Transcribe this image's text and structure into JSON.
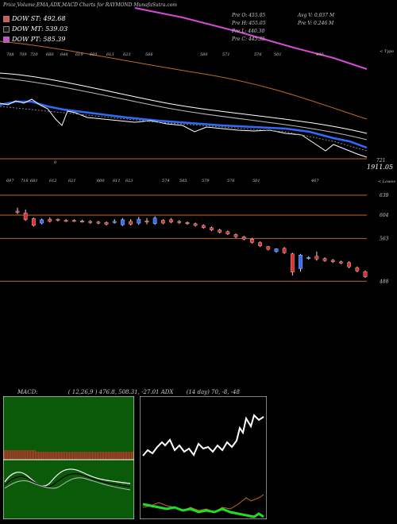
{
  "header": {
    "title": "Price,Volume,EMA,ADX,MACD Charts for RAYMOND MunafaSutra.com"
  },
  "legend": [
    {
      "label": "DOW ST: 492.68",
      "color": "#e05050"
    },
    {
      "label": "DOW MT: 539.03",
      "color": "#1a1a1a"
    },
    {
      "label": "DOW PT: 585.39",
      "color": "#d44ad4"
    }
  ],
  "stats": {
    "left": [
      "Pre O: 455.05",
      "Pre H: 455.05",
      "Pre L: 440.30",
      "Pre C: 445.35"
    ],
    "right": [
      "Avg V: 0.037 M",
      "Pre V: 0.246 M"
    ]
  },
  "top_chart": {
    "right_label": "< Typo",
    "bottom_value": "1911.05",
    "bottom_small": "721",
    "zero_mark": "0",
    "tick_labels": [
      "708",
      "709",
      "720",
      "680",
      "648",
      "619",
      "605",
      "613",
      "623",
      "588",
      "580",
      "571",
      "576",
      "501",
      "490"
    ],
    "colors": {
      "price": "#ffffff",
      "ema_short": "#2f6bff",
      "ema_long": "#ffffff",
      "ema_longest": "#c06a20",
      "dow_pt": "#d44ad4"
    }
  },
  "chart_data": {
    "type": "candlestick",
    "title": "Price,Volume,EMA,ADX,MACD Charts for RAYMOND MunafaSutra.com",
    "price_levels": [
      639,
      604,
      563,
      488
    ],
    "top_labels": [
      "697",
      "718",
      "681",
      "612",
      "621",
      "600",
      "611",
      "623",
      "574",
      "585",
      "579",
      "576",
      "501",
      "467"
    ],
    "right_label": "< Lowes",
    "candles": [
      {
        "o": 611,
        "c": 610,
        "h": 617,
        "l": 606,
        "up": false
      },
      {
        "o": 608,
        "c": 596,
        "h": 614,
        "l": 594,
        "up": false
      },
      {
        "o": 598,
        "c": 586,
        "h": 600,
        "l": 584,
        "up": false
      },
      {
        "o": 590,
        "c": 596,
        "h": 598,
        "l": 588,
        "up": true
      },
      {
        "o": 597,
        "c": 593,
        "h": 600,
        "l": 591,
        "up": false
      },
      {
        "o": 597,
        "c": 595,
        "h": 598,
        "l": 593,
        "up": false
      },
      {
        "o": 595,
        "c": 594,
        "h": 597,
        "l": 592,
        "up": false
      },
      {
        "o": 595,
        "c": 594,
        "h": 597,
        "l": 592,
        "up": false
      },
      {
        "o": 594,
        "c": 593,
        "h": 596,
        "l": 591,
        "up": false
      },
      {
        "o": 593,
        "c": 591,
        "h": 595,
        "l": 589,
        "up": false
      },
      {
        "o": 592,
        "c": 590,
        "h": 594,
        "l": 588,
        "up": false
      },
      {
        "o": 591,
        "c": 588,
        "h": 593,
        "l": 586,
        "up": false
      },
      {
        "o": 591,
        "c": 593,
        "h": 597,
        "l": 589,
        "up": true
      },
      {
        "o": 587,
        "c": 596,
        "h": 599,
        "l": 585,
        "up": true
      },
      {
        "o": 593,
        "c": 588,
        "h": 597,
        "l": 586,
        "up": false
      },
      {
        "o": 590,
        "c": 597,
        "h": 601,
        "l": 587,
        "up": true
      },
      {
        "o": 594,
        "c": 593,
        "h": 599,
        "l": 588,
        "up": false
      },
      {
        "o": 589,
        "c": 599,
        "h": 602,
        "l": 587,
        "up": true
      },
      {
        "o": 595,
        "c": 590,
        "h": 597,
        "l": 588,
        "up": false
      },
      {
        "o": 596,
        "c": 592,
        "h": 599,
        "l": 590,
        "up": false
      },
      {
        "o": 593,
        "c": 591,
        "h": 595,
        "l": 589,
        "up": false
      },
      {
        "o": 591,
        "c": 589,
        "h": 593,
        "l": 587,
        "up": false
      },
      {
        "o": 589,
        "c": 586,
        "h": 591,
        "l": 584,
        "up": false
      },
      {
        "o": 586,
        "c": 582,
        "h": 588,
        "l": 580,
        "up": false
      },
      {
        "o": 582,
        "c": 578,
        "h": 584,
        "l": 576,
        "up": false
      },
      {
        "o": 578,
        "c": 574,
        "h": 580,
        "l": 572,
        "up": false
      },
      {
        "o": 575,
        "c": 571,
        "h": 577,
        "l": 569,
        "up": false
      },
      {
        "o": 570,
        "c": 566,
        "h": 572,
        "l": 564,
        "up": false
      },
      {
        "o": 566,
        "c": 562,
        "h": 568,
        "l": 560,
        "up": false
      },
      {
        "o": 562,
        "c": 556,
        "h": 564,
        "l": 554,
        "up": false
      },
      {
        "o": 556,
        "c": 550,
        "h": 558,
        "l": 548,
        "up": false
      },
      {
        "o": 549,
        "c": 544,
        "h": 550,
        "l": 542,
        "up": false
      },
      {
        "o": 540,
        "c": 545,
        "h": 546,
        "l": 538,
        "up": true
      },
      {
        "o": 546,
        "c": 538,
        "h": 548,
        "l": 536,
        "up": false
      },
      {
        "o": 536,
        "c": 504,
        "h": 538,
        "l": 498,
        "up": false
      },
      {
        "o": 510,
        "c": 534,
        "h": 536,
        "l": 505,
        "up": true
      },
      {
        "o": 530,
        "c": 528,
        "h": 532,
        "l": 526,
        "up": true
      },
      {
        "o": 532,
        "c": 527,
        "h": 540,
        "l": 524,
        "up": false
      },
      {
        "o": 528,
        "c": 524,
        "h": 530,
        "l": 522,
        "up": false
      },
      {
        "o": 525,
        "c": 522,
        "h": 527,
        "l": 520,
        "up": false
      },
      {
        "o": 522,
        "c": 520,
        "h": 524,
        "l": 518,
        "up": false
      },
      {
        "o": 521,
        "c": 513,
        "h": 523,
        "l": 511,
        "up": false
      },
      {
        "o": 512,
        "c": 506,
        "h": 514,
        "l": 504,
        "up": false
      },
      {
        "o": 505,
        "c": 496,
        "h": 507,
        "l": 494,
        "up": false
      }
    ],
    "ylim": [
      480,
      650
    ]
  },
  "macd": {
    "label": "MACD:",
    "params": "( 12,26,9 ) 476.8, 508.31, -27.01"
  },
  "adx": {
    "label": "ADX",
    "params": "(14 day) 70, -8, -48"
  }
}
